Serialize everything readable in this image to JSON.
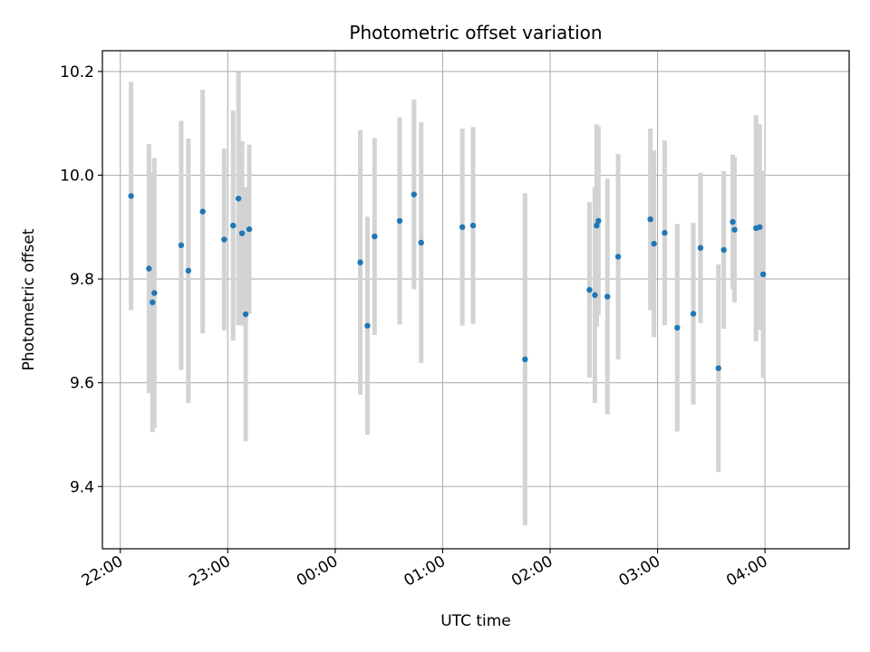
{
  "chart_data": {
    "type": "scatter",
    "title": "Photometric offset variation",
    "xlabel": "UTC time",
    "ylabel": "Photometric offset",
    "x_unit": "minutes since 00:00 UTC (negative = previous day)",
    "xlim": [
      -130,
      287
    ],
    "ylim": [
      9.28,
      10.24
    ],
    "grid": true,
    "legend": "none",
    "x_ticks": [
      {
        "value": -120,
        "label": "22:00"
      },
      {
        "value": -60,
        "label": "23:00"
      },
      {
        "value": 0,
        "label": "00:00"
      },
      {
        "value": 60,
        "label": "01:00"
      },
      {
        "value": 120,
        "label": "02:00"
      },
      {
        "value": 180,
        "label": "03:00"
      },
      {
        "value": 240,
        "label": "04:00"
      }
    ],
    "y_ticks": [
      {
        "value": 9.4,
        "label": "9.4"
      },
      {
        "value": 9.6,
        "label": "9.6"
      },
      {
        "value": 9.8,
        "label": "9.8"
      },
      {
        "value": 10.0,
        "label": "10.0"
      },
      {
        "value": 10.2,
        "label": "10.2"
      }
    ],
    "colors": {
      "point": "#1f77b4",
      "errorbar": "#d3d3d3",
      "grid": "#b0b0b0",
      "axes": "#000000"
    },
    "points": [
      {
        "x": -114,
        "y": 9.96,
        "err": 0.22
      },
      {
        "x": -104,
        "y": 9.82,
        "err": 0.24
      },
      {
        "x": -102,
        "y": 9.755,
        "err": 0.25
      },
      {
        "x": -101,
        "y": 9.773,
        "err": 0.26
      },
      {
        "x": -86,
        "y": 9.865,
        "err": 0.24
      },
      {
        "x": -82,
        "y": 9.816,
        "err": 0.255
      },
      {
        "x": -74,
        "y": 9.93,
        "err": 0.235
      },
      {
        "x": -62,
        "y": 9.876,
        "err": 0.175
      },
      {
        "x": -57,
        "y": 9.903,
        "err": 0.222
      },
      {
        "x": -54,
        "y": 9.955,
        "err": 0.244
      },
      {
        "x": -52,
        "y": 9.888,
        "err": 0.178
      },
      {
        "x": -50,
        "y": 9.732,
        "err": 0.245
      },
      {
        "x": -48,
        "y": 9.896,
        "err": 0.163
      },
      {
        "x": 14,
        "y": 9.832,
        "err": 0.255
      },
      {
        "x": 18,
        "y": 9.71,
        "err": 0.21
      },
      {
        "x": 22,
        "y": 9.882,
        "err": 0.19
      },
      {
        "x": 36,
        "y": 9.912,
        "err": 0.2
      },
      {
        "x": 44,
        "y": 9.963,
        "err": 0.183
      },
      {
        "x": 48,
        "y": 9.87,
        "err": 0.232
      },
      {
        "x": 71,
        "y": 9.9,
        "err": 0.19
      },
      {
        "x": 77,
        "y": 9.903,
        "err": 0.19
      },
      {
        "x": 106,
        "y": 9.645,
        "err": 0.32
      },
      {
        "x": 142,
        "y": 9.779,
        "err": 0.169
      },
      {
        "x": 145,
        "y": 9.769,
        "err": 0.208
      },
      {
        "x": 146,
        "y": 9.903,
        "err": 0.195
      },
      {
        "x": 147,
        "y": 9.912,
        "err": 0.182
      },
      {
        "x": 152,
        "y": 9.766,
        "err": 0.227
      },
      {
        "x": 158,
        "y": 9.843,
        "err": 0.198
      },
      {
        "x": 176,
        "y": 9.915,
        "err": 0.175
      },
      {
        "x": 178,
        "y": 9.868,
        "err": 0.18
      },
      {
        "x": 184,
        "y": 9.889,
        "err": 0.178
      },
      {
        "x": 191,
        "y": 9.706,
        "err": 0.2
      },
      {
        "x": 200,
        "y": 9.733,
        "err": 0.175
      },
      {
        "x": 204,
        "y": 9.86,
        "err": 0.145
      },
      {
        "x": 214,
        "y": 9.628,
        "err": 0.2
      },
      {
        "x": 217,
        "y": 9.856,
        "err": 0.152
      },
      {
        "x": 222,
        "y": 9.91,
        "err": 0.13
      },
      {
        "x": 223,
        "y": 9.895,
        "err": 0.14
      },
      {
        "x": 235,
        "y": 9.898,
        "err": 0.218
      },
      {
        "x": 237,
        "y": 9.9,
        "err": 0.198
      },
      {
        "x": 239,
        "y": 9.809,
        "err": 0.2
      }
    ]
  }
}
